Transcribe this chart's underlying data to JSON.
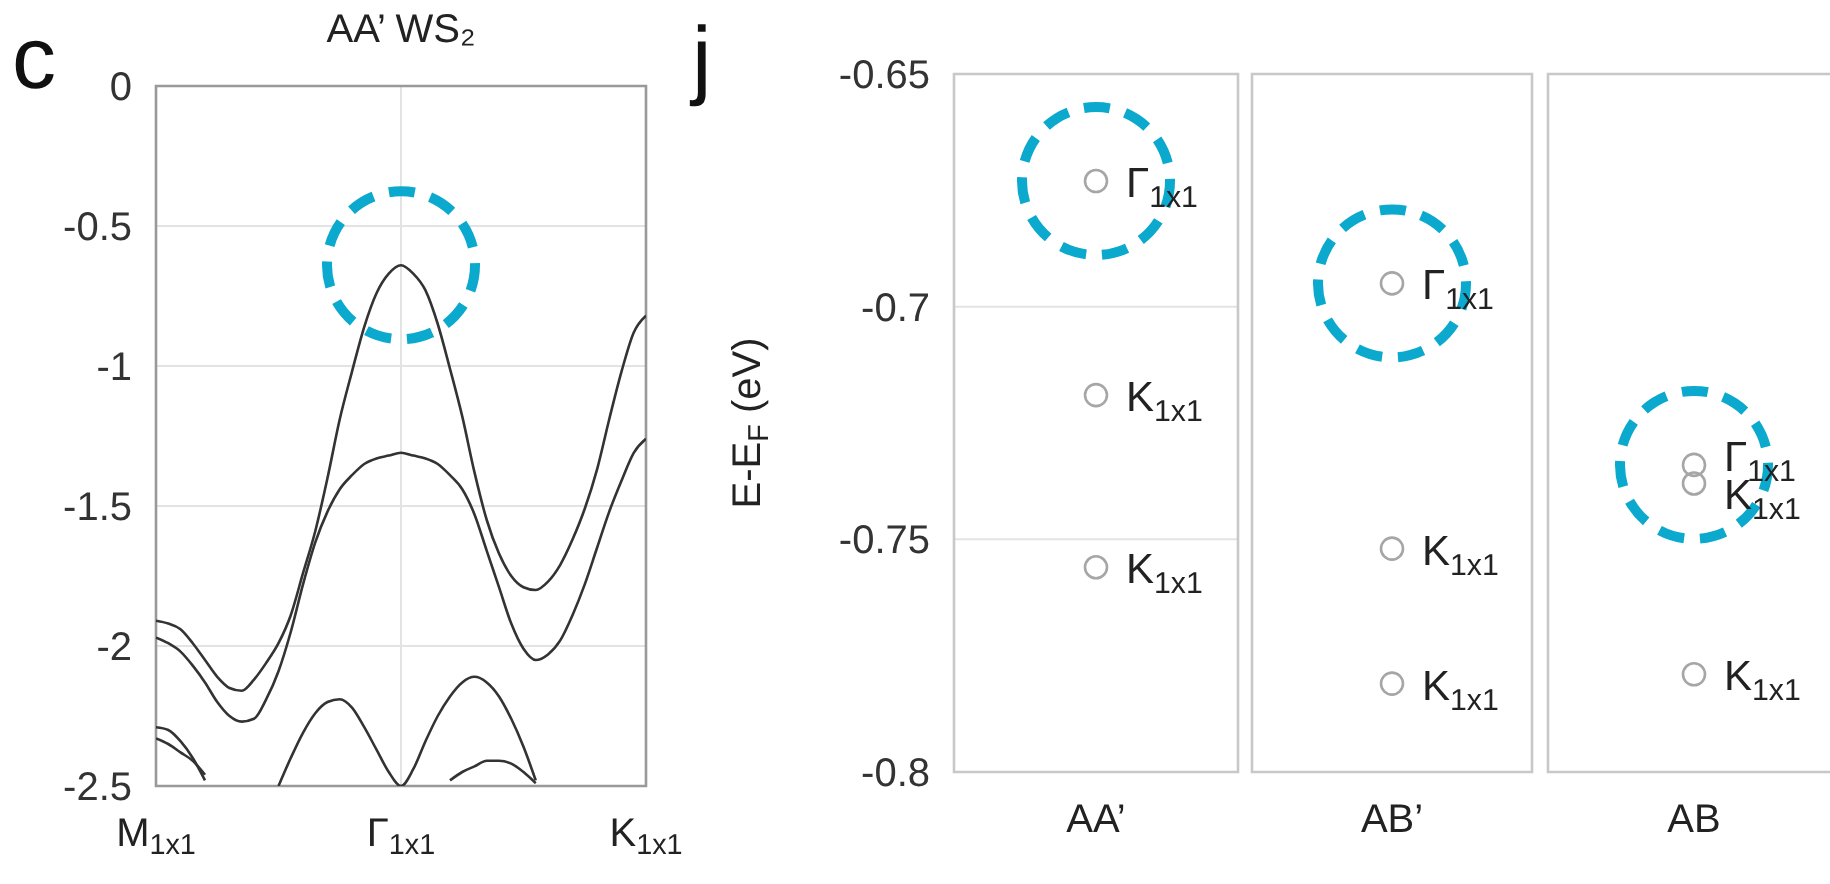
{
  "chart_data": [
    {
      "type": "line",
      "title": "AA’ WS₂",
      "annotations": [
        "c"
      ],
      "categories": [
        "M$_{1x1}$",
        null,
        null,
        null,
        null,
        null,
        null,
        null,
        null,
        null,
        null,
        null,
        null,
        null,
        null,
        null,
        null,
        null,
        null,
        null,
        "Γ$_{1x1}$",
        null,
        null,
        null,
        null,
        null,
        null,
        null,
        null,
        null,
        null,
        null,
        null,
        null,
        null,
        null,
        null,
        null,
        null,
        null,
        "K$_{1x1}$"
      ],
      "ylim": [
        -2.5,
        0
      ],
      "yticks": [
        0,
        -0.5,
        -1,
        -1.5,
        -2,
        -2.5
      ],
      "grid": true,
      "series": [
        {
          "color": "#333333",
          "values": [
            -1.91,
            -1.92,
            -1.94,
            -1.99,
            -2.05,
            -2.11,
            -2.15,
            -2.16,
            -2.12,
            -2.06,
            -1.99,
            -1.89,
            -1.74,
            -1.59,
            -1.4,
            -1.19,
            -1.02,
            -0.86,
            -0.74,
            -0.67,
            -0.64,
            -0.67,
            -0.73,
            -0.85,
            -1.01,
            -1.18,
            -1.38,
            -1.55,
            -1.67,
            -1.75,
            -1.79,
            -1.8,
            -1.77,
            -1.71,
            -1.62,
            -1.51,
            -1.37,
            -1.19,
            -1.02,
            -0.88,
            -0.82
          ]
        },
        {
          "color": "#333333",
          "values": [
            -1.97,
            -1.99,
            -2.02,
            -2.07,
            -2.13,
            -2.2,
            -2.25,
            -2.27,
            -2.26,
            -2.19,
            -2.09,
            -1.95,
            -1.78,
            -1.63,
            -1.52,
            -1.44,
            -1.39,
            -1.35,
            -1.33,
            -1.32,
            -1.31,
            -1.32,
            -1.33,
            -1.35,
            -1.39,
            -1.44,
            -1.53,
            -1.66,
            -1.79,
            -1.92,
            -2.01,
            -2.05,
            -2.03,
            -1.98,
            -1.89,
            -1.78,
            -1.65,
            -1.52,
            -1.41,
            -1.31,
            -1.26
          ]
        },
        {
          "color": "#333333",
          "values": [
            null,
            null,
            null,
            null,
            null,
            null,
            null,
            null,
            null,
            null,
            -2.5,
            -2.4,
            -2.31,
            -2.24,
            -2.2,
            -2.19,
            -2.22,
            -2.29,
            -2.37,
            -2.45,
            -2.5,
            -2.44,
            -2.34,
            -2.25,
            -2.18,
            -2.13,
            -2.11,
            -2.13,
            -2.18,
            -2.26,
            -2.36,
            -2.48,
            null,
            null,
            null,
            null,
            null,
            null,
            null,
            null,
            null
          ]
        },
        {
          "color": "#333333",
          "values": [
            null,
            null,
            null,
            null,
            null,
            null,
            null,
            null,
            null,
            null,
            null,
            null,
            null,
            null,
            null,
            null,
            null,
            null,
            null,
            null,
            null,
            null,
            null,
            null,
            -2.48,
            -2.45,
            -2.43,
            -2.41,
            -2.41,
            -2.42,
            -2.45,
            -2.49,
            null,
            null,
            null,
            null,
            null,
            null,
            null,
            null,
            null
          ]
        },
        {
          "color": "#333333",
          "values": [
            -2.29,
            -2.3,
            -2.34,
            -2.4,
            -2.48,
            null,
            null,
            null,
            null,
            null,
            null,
            null,
            null,
            null,
            null,
            null,
            null,
            null,
            null,
            null,
            null,
            null,
            null,
            null,
            null,
            null,
            null,
            null,
            null,
            null,
            null,
            null,
            null,
            null,
            null,
            null,
            null,
            null,
            null,
            null,
            null
          ]
        },
        {
          "color": "#333333",
          "values": [
            -2.33,
            -2.35,
            -2.38,
            -2.41,
            -2.46,
            null,
            null,
            null,
            null,
            null,
            null,
            null,
            null,
            null,
            null,
            null,
            null,
            null,
            null,
            null,
            null,
            null,
            null,
            null,
            null,
            null,
            null,
            null,
            null,
            null,
            null,
            null,
            null,
            null,
            null,
            null,
            null,
            null,
            null,
            null,
            null
          ]
        }
      ]
    },
    {
      "type": "scatter",
      "ylabel": "E-E$_{F}$  (eV)",
      "annotations": [
        "j",
        {
          "text": "Γ$_{1x1}$",
          "x": "AA’",
          "y": -0.673
        },
        {
          "text": "K$_{1x1}$",
          "x": "AA’",
          "y": -0.719
        },
        {
          "text": "K$_{1x1}$",
          "x": "AA’",
          "y": -0.756
        }
      ],
      "categories": [
        "AA’"
      ],
      "ylim": [
        -0.8,
        -0.65
      ],
      "yticks": [
        -0.65,
        -0.7,
        -0.75,
        -0.8
      ],
      "grid": "y",
      "marker": "circle",
      "series": [
        {
          "color": "#a6a6a6",
          "x": [
            "AA’",
            "AA’",
            "AA’"
          ],
          "values": [
            -0.673,
            -0.719,
            -0.756
          ]
        }
      ]
    },
    {
      "type": "scatter",
      "annotations": [
        {
          "text": "Γ$_{1x1}$",
          "x": "AB’",
          "y": -0.695
        },
        {
          "text": "K$_{1x1}$",
          "x": "AB’",
          "y": -0.752
        },
        {
          "text": "K$_{1x1}$",
          "x": "AB’",
          "y": -0.781
        }
      ],
      "categories": [
        "AB’"
      ],
      "ylim": [
        -0.8,
        -0.65
      ],
      "yticks": [
        -0.65,
        -0.7,
        -0.75,
        -0.8
      ],
      "grid": "y",
      "marker": "circle",
      "tick_labels": "x",
      "series": [
        {
          "color": "#a6a6a6",
          "x": [
            "AB’",
            "AB’",
            "AB’"
          ],
          "values": [
            -0.695,
            -0.752,
            -0.781
          ]
        }
      ]
    },
    {
      "type": "scatter",
      "annotations": [
        {
          "text": "Γ$_{1x1}$",
          "x": "AB",
          "y": -0.734
        },
        {
          "text": "K$_{1x1}$",
          "x": "AB",
          "y": -0.738
        },
        {
          "text": "K$_{1x1}$",
          "x": "AB",
          "y": -0.779
        }
      ],
      "categories": [
        "AB"
      ],
      "ylim": [
        -0.8,
        -0.65
      ],
      "yticks": [
        -0.65,
        -0.7,
        -0.75,
        -0.8
      ],
      "grid": "y",
      "marker": "circle",
      "tick_labels": "x",
      "series": [
        {
          "color": "#a6a6a6",
          "x": [
            "AB",
            "AB",
            "AB"
          ],
          "values": [
            -0.734,
            -0.738,
            -0.779
          ]
        }
      ]
    }
  ]
}
